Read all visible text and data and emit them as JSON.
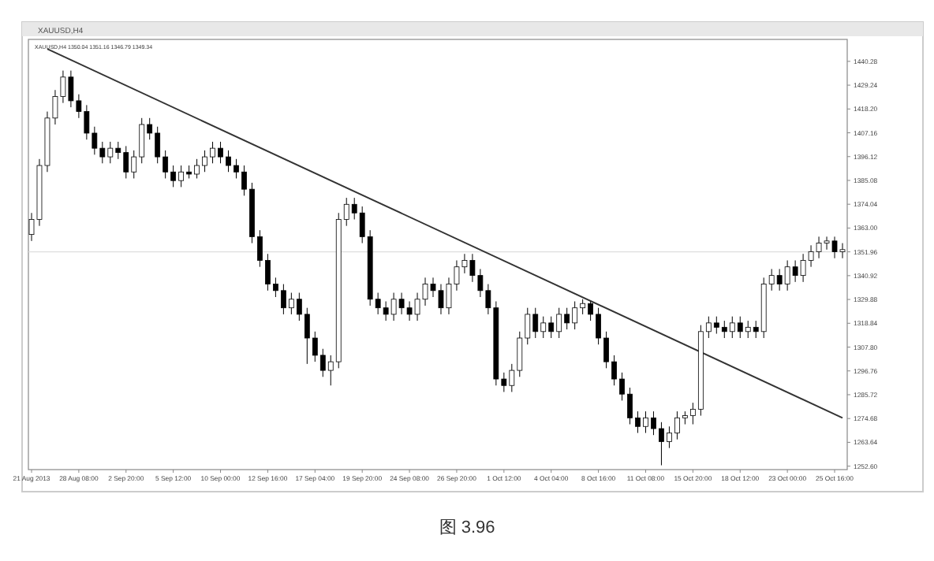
{
  "chart_data": {
    "type": "candlestick",
    "title": "XAUUSD,H4",
    "subtitle": "XAUUSD,H4 1350.04 1351.16 1346.79 1349.34",
    "annotations": [
      "图 3.96"
    ],
    "categories": [
      "21 Aug 2013",
      null,
      null,
      null,
      null,
      null,
      "28 Aug 08:00",
      null,
      null,
      null,
      null,
      null,
      "2 Sep 20:00",
      null,
      null,
      null,
      null,
      null,
      "5 Sep 12:00",
      null,
      null,
      null,
      null,
      null,
      "10 Sep 00:00",
      null,
      null,
      null,
      null,
      null,
      "12 Sep 16:00",
      null,
      null,
      null,
      null,
      null,
      "17 Sep 04:00",
      null,
      null,
      null,
      null,
      null,
      "19 Sep 20:00",
      null,
      null,
      null,
      null,
      null,
      "24 Sep 08:00",
      null,
      null,
      null,
      null,
      null,
      "26 Sep 20:00",
      null,
      null,
      null,
      null,
      null,
      "1 Oct 12:00",
      null,
      null,
      null,
      null,
      null,
      "4 Oct 04:00",
      null,
      null,
      null,
      null,
      null,
      "8 Oct 16:00",
      null,
      null,
      null,
      null,
      null,
      "11 Oct 08:00",
      null,
      null,
      null,
      null,
      null,
      "15 Oct 20:00",
      null,
      null,
      null,
      null,
      null,
      "18 Oct 12:00",
      null,
      null,
      null,
      null,
      null,
      "23 Oct 00:00",
      null,
      null,
      null,
      null,
      null,
      "25 Oct 16:00",
      null
    ],
    "ohlc": [
      [
        1360,
        1370,
        1357,
        1367
      ],
      [
        1367,
        1395,
        1364,
        1392
      ],
      [
        1392,
        1417,
        1389,
        1414
      ],
      [
        1414,
        1427,
        1411,
        1424
      ],
      [
        1424,
        1436,
        1421,
        1433
      ],
      [
        1433,
        1436,
        1419,
        1422
      ],
      [
        1422,
        1425,
        1414,
        1417
      ],
      [
        1417,
        1420,
        1404,
        1407
      ],
      [
        1407,
        1410,
        1397,
        1400
      ],
      [
        1400,
        1403,
        1393,
        1396
      ],
      [
        1396,
        1403,
        1393,
        1400
      ],
      [
        1400,
        1403,
        1395,
        1398
      ],
      [
        1398,
        1401,
        1386,
        1389
      ],
      [
        1389,
        1399,
        1386,
        1396
      ],
      [
        1396,
        1414,
        1393,
        1411
      ],
      [
        1411,
        1414,
        1404,
        1407
      ],
      [
        1407,
        1410,
        1393,
        1396
      ],
      [
        1396,
        1399,
        1386,
        1389
      ],
      [
        1389,
        1392,
        1382,
        1385
      ],
      [
        1385,
        1392,
        1382,
        1389
      ],
      [
        1389,
        1392,
        1386,
        1388
      ],
      [
        1388,
        1395,
        1386,
        1392
      ],
      [
        1392,
        1399,
        1389,
        1396
      ],
      [
        1396,
        1403,
        1393,
        1400
      ],
      [
        1400,
        1403,
        1393,
        1396
      ],
      [
        1396,
        1399,
        1389,
        1392
      ],
      [
        1392,
        1395,
        1386,
        1389
      ],
      [
        1389,
        1392,
        1378,
        1381
      ],
      [
        1381,
        1384,
        1356,
        1359
      ],
      [
        1359,
        1362,
        1345,
        1348
      ],
      [
        1348,
        1351,
        1334,
        1337
      ],
      [
        1337,
        1340,
        1331,
        1334
      ],
      [
        1334,
        1337,
        1323,
        1326
      ],
      [
        1326,
        1333,
        1323,
        1330
      ],
      [
        1330,
        1333,
        1320,
        1323
      ],
      [
        1323,
        1326,
        1300,
        1312
      ],
      [
        1312,
        1315,
        1301,
        1304
      ],
      [
        1304,
        1307,
        1294,
        1297
      ],
      [
        1297,
        1304,
        1290,
        1301
      ],
      [
        1301,
        1370,
        1298,
        1367
      ],
      [
        1367,
        1377,
        1364,
        1374
      ],
      [
        1374,
        1377,
        1367,
        1370
      ],
      [
        1370,
        1373,
        1356,
        1359
      ],
      [
        1359,
        1362,
        1327,
        1330
      ],
      [
        1330,
        1333,
        1323,
        1326
      ],
      [
        1326,
        1329,
        1320,
        1323
      ],
      [
        1323,
        1333,
        1320,
        1330
      ],
      [
        1330,
        1333,
        1323,
        1326
      ],
      [
        1326,
        1329,
        1320,
        1323
      ],
      [
        1323,
        1333,
        1320,
        1330
      ],
      [
        1330,
        1340,
        1327,
        1337
      ],
      [
        1337,
        1340,
        1331,
        1334
      ],
      [
        1334,
        1337,
        1323,
        1326
      ],
      [
        1326,
        1340,
        1323,
        1337
      ],
      [
        1337,
        1348,
        1334,
        1345
      ],
      [
        1345,
        1351,
        1342,
        1348
      ],
      [
        1348,
        1351,
        1338,
        1341
      ],
      [
        1341,
        1344,
        1331,
        1334
      ],
      [
        1334,
        1337,
        1323,
        1326
      ],
      [
        1326,
        1329,
        1290,
        1293
      ],
      [
        1293,
        1296,
        1287,
        1290
      ],
      [
        1290,
        1300,
        1287,
        1297
      ],
      [
        1297,
        1315,
        1294,
        1312
      ],
      [
        1312,
        1326,
        1309,
        1323
      ],
      [
        1323,
        1326,
        1312,
        1315
      ],
      [
        1315,
        1322,
        1312,
        1319
      ],
      [
        1319,
        1322,
        1312,
        1315
      ],
      [
        1315,
        1326,
        1312,
        1323
      ],
      [
        1323,
        1326,
        1316,
        1319
      ],
      [
        1319,
        1329,
        1316,
        1326
      ],
      [
        1326,
        1330,
        1323,
        1328
      ],
      [
        1328,
        1329,
        1320,
        1323
      ],
      [
        1323,
        1326,
        1309,
        1312
      ],
      [
        1312,
        1315,
        1298,
        1301
      ],
      [
        1301,
        1304,
        1290,
        1293
      ],
      [
        1293,
        1296,
        1283,
        1286
      ],
      [
        1286,
        1289,
        1272,
        1275
      ],
      [
        1275,
        1278,
        1268,
        1271
      ],
      [
        1271,
        1278,
        1268,
        1275
      ],
      [
        1275,
        1278,
        1267,
        1270
      ],
      [
        1270,
        1273,
        1253,
        1264
      ],
      [
        1264,
        1271,
        1261,
        1268
      ],
      [
        1268,
        1278,
        1265,
        1275
      ],
      [
        1275,
        1278,
        1272,
        1276
      ],
      [
        1276,
        1282,
        1272,
        1279
      ],
      [
        1279,
        1318,
        1276,
        1315
      ],
      [
        1315,
        1322,
        1312,
        1319
      ],
      [
        1319,
        1322,
        1314,
        1317
      ],
      [
        1317,
        1320,
        1312,
        1315
      ],
      [
        1315,
        1322,
        1312,
        1319
      ],
      [
        1319,
        1322,
        1312,
        1315
      ],
      [
        1315,
        1320,
        1312,
        1317
      ],
      [
        1317,
        1320,
        1312,
        1315
      ],
      [
        1315,
        1340,
        1312,
        1337
      ],
      [
        1337,
        1344,
        1334,
        1341
      ],
      [
        1341,
        1344,
        1334,
        1337
      ],
      [
        1337,
        1348,
        1334,
        1345
      ],
      [
        1345,
        1348,
        1338,
        1341
      ],
      [
        1341,
        1351,
        1338,
        1348
      ],
      [
        1348,
        1355,
        1345,
        1352
      ],
      [
        1352,
        1359,
        1349,
        1356
      ],
      [
        1356,
        1359,
        1353,
        1357
      ],
      [
        1357,
        1359,
        1349,
        1352
      ],
      [
        1352,
        1356,
        1349,
        1353
      ]
    ],
    "color": "#000000",
    "series": [
      {
        "type": "line",
        "values": [
          null,
          null,
          1446,
          null,
          null,
          null,
          null,
          null,
          null,
          null,
          null,
          null,
          null,
          null,
          null,
          null,
          null,
          null,
          null,
          null,
          null,
          null,
          null,
          null,
          null,
          null,
          null,
          null,
          null,
          null,
          null,
          null,
          null,
          null,
          null,
          null,
          null,
          null,
          null,
          null,
          null,
          null,
          null,
          null,
          null,
          null,
          null,
          null,
          null,
          null,
          null,
          null,
          null,
          null,
          null,
          null,
          null,
          null,
          null,
          null,
          null,
          null,
          null,
          null,
          null,
          null,
          null,
          null,
          null,
          null,
          null,
          null,
          null,
          null,
          null,
          null,
          null,
          null,
          null,
          null,
          null,
          null,
          null,
          null,
          null,
          null,
          null,
          null,
          null,
          null,
          null,
          null,
          null,
          null,
          null,
          null,
          null,
          null,
          null,
          null,
          null,
          null,
          null,
          1275
        ],
        "color": "#333333"
      }
    ],
    "ref_lines": [
      {
        "axis": "y",
        "value": 1352,
        "color": "#dddddd"
      }
    ],
    "ylim": [
      1251,
      1449
    ],
    "yticks": [
      {
        "value": 1252.6,
        "label": "1252.60"
      },
      {
        "value": 1263.64,
        "label": "1263.64"
      },
      {
        "value": 1274.68,
        "label": "1274.68"
      },
      {
        "value": 1285.72,
        "label": "1285.72"
      },
      {
        "value": 1296.76,
        "label": "1296.76"
      },
      {
        "value": 1307.8,
        "label": "1307.80"
      },
      {
        "value": 1318.84,
        "label": "1318.84"
      },
      {
        "value": 1329.88,
        "label": "1329.88"
      },
      {
        "value": 1340.92,
        "label": "1340.92"
      },
      {
        "value": 1351.96,
        "label": "1351.96"
      },
      {
        "value": 1363,
        "label": "1363.00"
      },
      {
        "value": 1374.04,
        "label": "1374.04"
      },
      {
        "value": 1385.08,
        "label": "1385.08"
      },
      {
        "value": 1396.12,
        "label": "1396.12"
      },
      {
        "value": 1407.16,
        "label": "1407.16"
      },
      {
        "value": 1418.2,
        "label": "1418.20"
      },
      {
        "value": 1429.24,
        "label": "1429.24"
      },
      {
        "value": 1440.28,
        "label": "1440.28"
      }
    ]
  }
}
